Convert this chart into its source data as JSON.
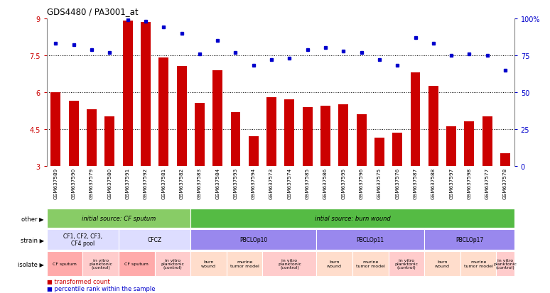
{
  "title": "GDS4480 / PA3001_at",
  "samples": [
    "GSM637589",
    "GSM637590",
    "GSM637579",
    "GSM637580",
    "GSM637591",
    "GSM637592",
    "GSM637581",
    "GSM637582",
    "GSM637583",
    "GSM637584",
    "GSM637593",
    "GSM637594",
    "GSM637573",
    "GSM637574",
    "GSM637585",
    "GSM637586",
    "GSM637595",
    "GSM637596",
    "GSM637575",
    "GSM637576",
    "GSM637587",
    "GSM637588",
    "GSM637597",
    "GSM637598",
    "GSM637577",
    "GSM637578"
  ],
  "bar_values": [
    6.0,
    5.65,
    5.3,
    5.0,
    8.9,
    8.85,
    7.4,
    7.05,
    5.55,
    6.9,
    5.2,
    4.2,
    5.8,
    5.7,
    5.4,
    5.45,
    5.5,
    5.1,
    4.15,
    4.35,
    6.8,
    6.25,
    4.6,
    4.8,
    5.0,
    3.5
  ],
  "dot_values": [
    83,
    82,
    79,
    77,
    99,
    98,
    94,
    90,
    76,
    85,
    77,
    68,
    72,
    73,
    79,
    80,
    78,
    77,
    72,
    68,
    87,
    83,
    75,
    76,
    75,
    65
  ],
  "bar_color": "#cc0000",
  "dot_color": "#0000cc",
  "ylim_left": [
    3,
    9
  ],
  "ylim_right": [
    0,
    100
  ],
  "yticks_left": [
    3,
    4.5,
    6,
    7.5,
    9
  ],
  "yticks_right": [
    0,
    25,
    50,
    75,
    100
  ],
  "hlines": [
    4.5,
    6.0,
    7.5
  ],
  "other_items": [
    {
      "label": "initial source: CF sputum",
      "color": "#88cc66",
      "span": [
        0,
        8
      ]
    },
    {
      "label": "intial source: burn wound",
      "color": "#55bb44",
      "span": [
        8,
        26
      ]
    }
  ],
  "strain_row": [
    {
      "label": "CF1, CF2, CF3,\nCF4 pool",
      "color": "#ddddff",
      "span": [
        0,
        4
      ]
    },
    {
      "label": "CFCZ",
      "color": "#ddddff",
      "span": [
        4,
        8
      ]
    },
    {
      "label": "PBCLOp10",
      "color": "#9988ee",
      "span": [
        8,
        15
      ]
    },
    {
      "label": "PBCLOp11",
      "color": "#9988ee",
      "span": [
        15,
        21
      ]
    },
    {
      "label": "PBCLOp17",
      "color": "#9988ee",
      "span": [
        21,
        26
      ]
    }
  ],
  "isolate_row": [
    {
      "label": "CF sputum",
      "color": "#ffaaaa",
      "span": [
        0,
        2
      ]
    },
    {
      "label": "in vitro\nplanktonic\n(control)",
      "color": "#ffcccc",
      "span": [
        2,
        4
      ]
    },
    {
      "label": "CF sputum",
      "color": "#ffaaaa",
      "span": [
        4,
        6
      ]
    },
    {
      "label": "in vitro\nplanktonic\n(control)",
      "color": "#ffcccc",
      "span": [
        6,
        8
      ]
    },
    {
      "label": "burn\nwound",
      "color": "#ffddcc",
      "span": [
        8,
        10
      ]
    },
    {
      "label": "murine\ntumor model",
      "color": "#ffddcc",
      "span": [
        10,
        12
      ]
    },
    {
      "label": "in vitro\nplanktonic\n(control)",
      "color": "#ffcccc",
      "span": [
        12,
        15
      ]
    },
    {
      "label": "burn\nwound",
      "color": "#ffddcc",
      "span": [
        15,
        17
      ]
    },
    {
      "label": "murine\ntumor model",
      "color": "#ffddcc",
      "span": [
        17,
        19
      ]
    },
    {
      "label": "in vitro\nplanktonic\n(control)",
      "color": "#ffcccc",
      "span": [
        19,
        21
      ]
    },
    {
      "label": "burn\nwound",
      "color": "#ffddcc",
      "span": [
        21,
        23
      ]
    },
    {
      "label": "murine\ntumor model",
      "color": "#ffddcc",
      "span": [
        23,
        25
      ]
    },
    {
      "label": "in vitro\nplanktonic\n(control)",
      "color": "#ffcccc",
      "span": [
        25,
        26
      ]
    }
  ],
  "row_labels": [
    "other",
    "strain",
    "isolate"
  ],
  "legend_bar_label": "transformed count",
  "legend_dot_label": "percentile rank within the sample",
  "xlabels_bg": "#cccccc"
}
